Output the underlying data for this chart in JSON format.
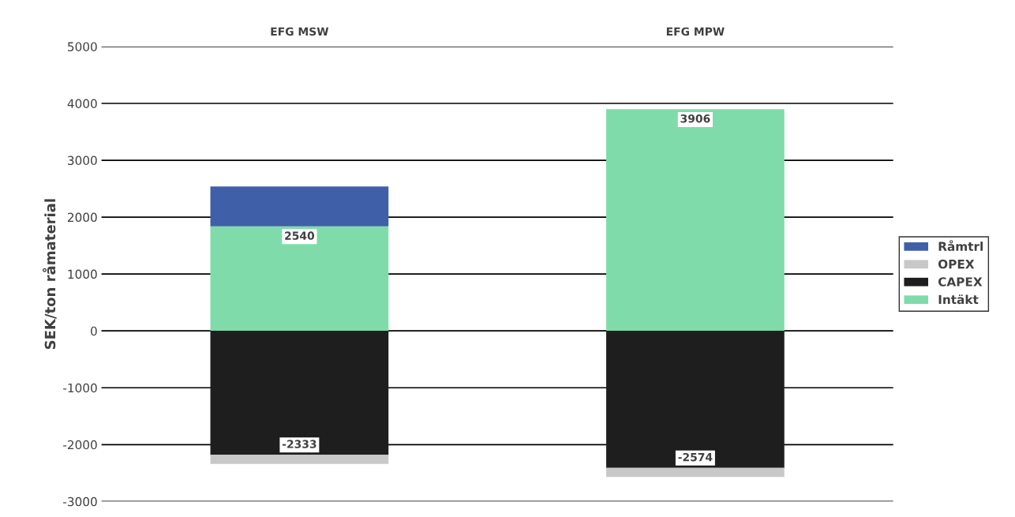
{
  "chart_data": {
    "type": "bar",
    "stacked": true,
    "ylabel": "SEK/ton råmaterial",
    "categories": [
      "EFG MSW",
      "EFG MPW"
    ],
    "series": [
      {
        "name": "Intäkt",
        "color": "#7fdcaa",
        "values": [
          1840,
          3900
        ]
      },
      {
        "name": "CAPEX",
        "color": "#1e1e1e",
        "values": [
          -2180,
          -2410
        ]
      },
      {
        "name": "OPEX",
        "color": "#c8c8c8",
        "values": [
          -160,
          -160
        ]
      },
      {
        "name": "Råmtrl",
        "color": "#3f5fa8",
        "values": [
          700,
          0
        ]
      }
    ],
    "totals": [
      [
        "2540",
        "-2333"
      ],
      [
        "3906",
        "-2574"
      ]
    ],
    "ylim": [
      -3000,
      5000
    ],
    "yticks": [
      -3000,
      -2000,
      -1000,
      0,
      1000,
      2000,
      3000,
      4000,
      5000
    ],
    "grid": "y",
    "legend": "right"
  }
}
